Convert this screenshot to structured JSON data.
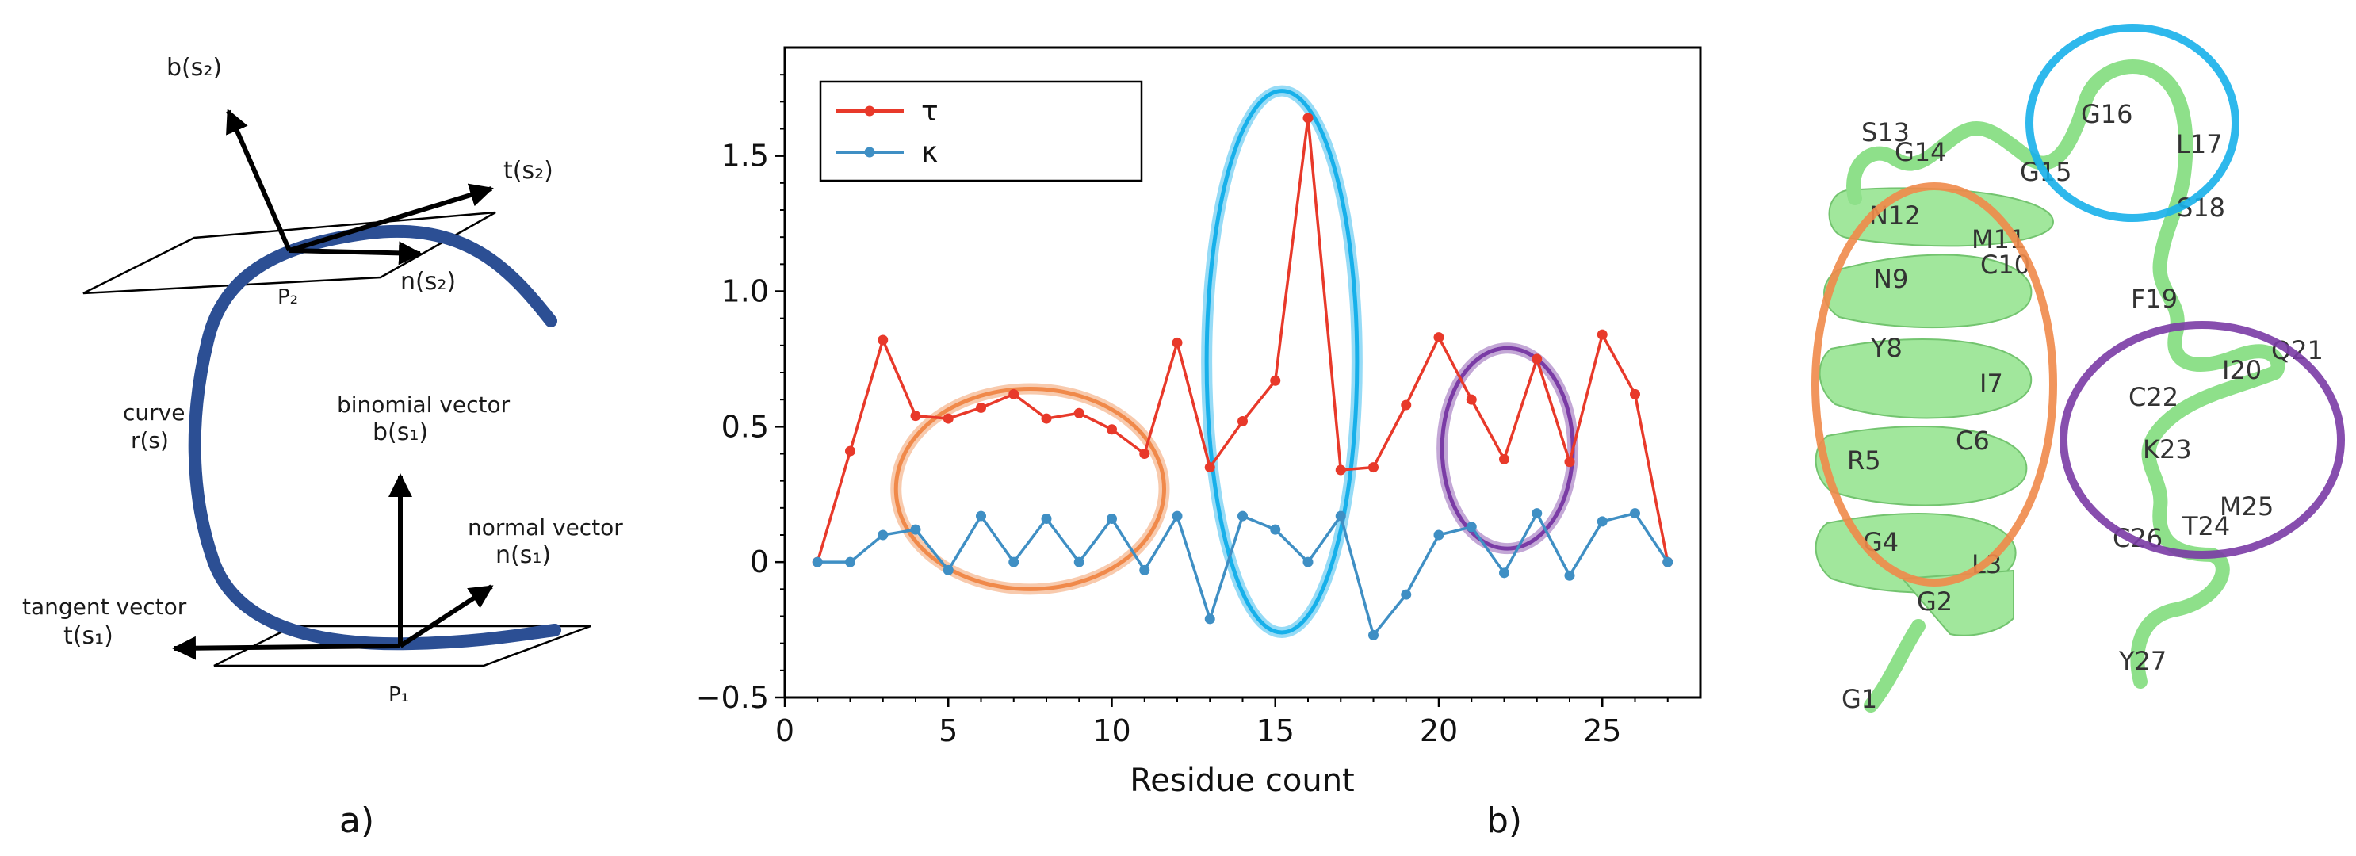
{
  "panel_labels": {
    "a": "a)",
    "b": "b)"
  },
  "frenet": {
    "b_s2": "b(s₂)",
    "t_s2": "t(s₂)",
    "n_s2": "n(s₂)",
    "p2": "P₂",
    "curve_label_1": "curve",
    "curve_label_2": "r(s)",
    "binomial_1": "binomial vector",
    "binomial_2": "b(s₁)",
    "normal_1": "normal vector",
    "normal_2": "n(s₁)",
    "tangent_1": "tangent vector",
    "tangent_2": "t(s₁)",
    "p1": "P₁"
  },
  "colors": {
    "tau": "#e8392a",
    "kappa": "#3f8fc4",
    "orange": "#f0894a",
    "cyan": "#17b0ea",
    "purple": "#7a3ba5",
    "curve": "#2c4f94",
    "helix": "#8ee08a"
  },
  "chart_data": {
    "type": "line",
    "title": "",
    "xlabel": "Residue count",
    "ylabel": "",
    "xlim": [
      0,
      28
    ],
    "ylim": [
      -0.5,
      1.9
    ],
    "x_ticks": [
      0,
      5,
      10,
      15,
      20,
      25
    ],
    "y_ticks": [
      -0.5,
      0,
      0.5,
      1.0,
      1.5
    ],
    "x_tick_labels": [
      "0",
      "5",
      "10",
      "15",
      "20",
      "25"
    ],
    "y_tick_labels": [
      "−0.5",
      "0",
      "0.5",
      "1.0",
      "1.5"
    ],
    "legend_position": "top-left",
    "x": [
      1,
      2,
      3,
      4,
      5,
      6,
      7,
      8,
      9,
      10,
      11,
      12,
      13,
      14,
      15,
      16,
      17,
      18,
      19,
      20,
      21,
      22,
      23,
      24,
      25,
      26,
      27
    ],
    "series": [
      {
        "name": "τ",
        "color": "#e8392a",
        "values": [
          0,
          0.41,
          0.82,
          0.54,
          0.53,
          0.57,
          0.62,
          0.53,
          0.55,
          0.49,
          0.4,
          0.81,
          0.35,
          0.52,
          0.67,
          1.64,
          0.34,
          0.35,
          0.58,
          0.83,
          0.6,
          0.38,
          0.75,
          0.37,
          0.84,
          0.62,
          0
        ]
      },
      {
        "name": "κ",
        "color": "#3f8fc4",
        "values": [
          0,
          0,
          0.1,
          0.12,
          -0.03,
          0.17,
          0,
          0.16,
          0,
          0.16,
          -0.03,
          0.17,
          -0.21,
          0.17,
          0.12,
          0,
          0.17,
          -0.27,
          -0.12,
          0.1,
          0.13,
          -0.04,
          0.18,
          -0.05,
          0.15,
          0.18,
          0
        ]
      }
    ],
    "highlight_ellipses": [
      {
        "name": "orange",
        "color": "#f0894a",
        "cx": 7.5,
        "cy": 0.27,
        "rx": 4.1,
        "ry": 0.37
      },
      {
        "name": "cyan",
        "color": "#17b0ea",
        "cx": 15.2,
        "cy": 0.74,
        "rx": 2.3,
        "ry": 1.0
      },
      {
        "name": "purple",
        "color": "#7a3ba5",
        "cx": 22.1,
        "cy": 0.42,
        "rx": 2.0,
        "ry": 0.37
      }
    ]
  },
  "protein_residues": [
    "G16",
    "S13",
    "G14",
    "L17",
    "G15",
    "N12",
    "S18",
    "M11",
    "C10",
    "N9",
    "F19",
    "Q21",
    "I20",
    "Y8",
    "C22",
    "I7",
    "K23",
    "R5",
    "C6",
    "M25",
    "G4",
    "T24",
    "L3",
    "C26",
    "G2",
    "Y27",
    "G1"
  ]
}
